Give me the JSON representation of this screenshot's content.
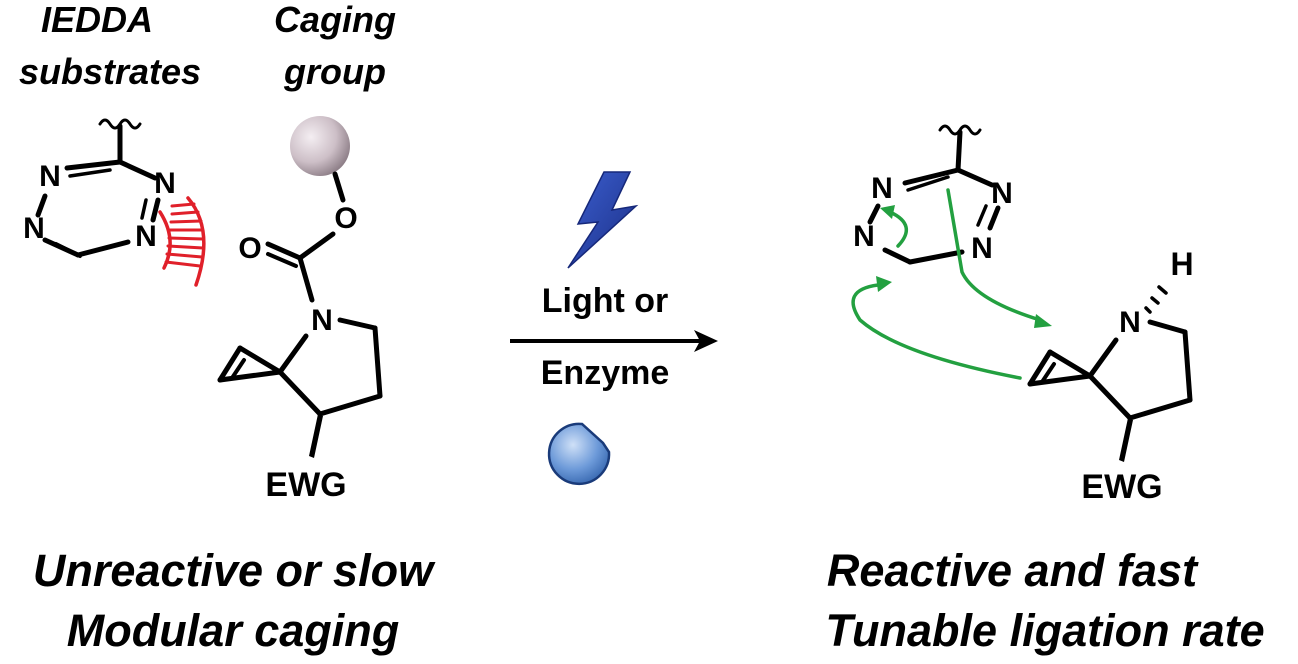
{
  "labels": {
    "iedda_line1": "IEDDA",
    "iedda_line2": "substrates",
    "caging_line1": "Caging",
    "caging_line2": "group",
    "condition_top": "Light or",
    "condition_bottom": "Enzyme",
    "left_caption_line1": "Unreactive or slow",
    "left_caption_line2": "Modular caging",
    "right_caption_line1": "Reactive and fast",
    "right_caption_line2": "Tunable ligation rate"
  },
  "atoms": {
    "N": "N",
    "O": "O",
    "H": "H",
    "EWG": "EWG"
  },
  "colors": {
    "clash_red": "#e0202a",
    "curly_arrow_green": "#23a040",
    "lightning_blue": "#1f3fa8",
    "enzyme_blue": "#5b8fd6",
    "caging_sphere": "#d6c8d0"
  }
}
